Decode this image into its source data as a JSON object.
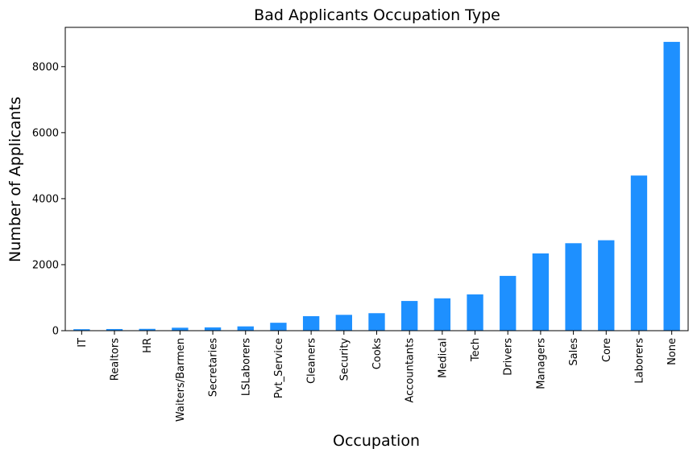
{
  "chart_data": {
    "type": "bar",
    "title": "Bad Applicants Occupation Type",
    "xlabel": "Occupation",
    "ylabel": "Number of Applicants",
    "categories": [
      "IT",
      "Realtors",
      "HR",
      "Waiters/Barmen",
      "Secretaries",
      "LSLaborers",
      "Pvt_Service",
      "Cleaners",
      "Security",
      "Cooks",
      "Accountants",
      "Medical",
      "Tech",
      "Drivers",
      "Managers",
      "Sales",
      "Core",
      "Laborers",
      "None"
    ],
    "values": [
      45,
      50,
      55,
      90,
      100,
      130,
      240,
      440,
      480,
      530,
      900,
      980,
      1100,
      1660,
      2340,
      2650,
      2740,
      4700,
      8750
    ],
    "ylim": [
      0,
      9190
    ],
    "yticks": [
      0,
      2000,
      4000,
      6000,
      8000
    ],
    "grid": false,
    "bar_color": "#1e90ff"
  }
}
